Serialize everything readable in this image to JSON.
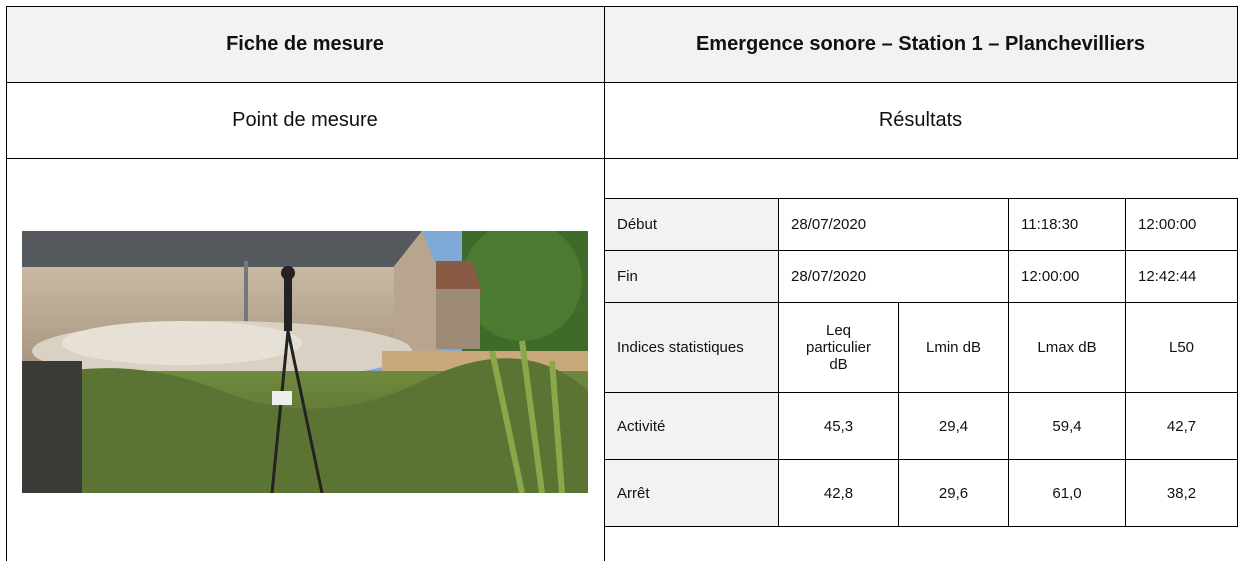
{
  "header": {
    "title": "Fiche de mesure",
    "subtitle": "Emergence sonore – Station 1 – Planchevilliers"
  },
  "sections": {
    "left": "Point de mesure",
    "right": "Résultats"
  },
  "table": {
    "periods": [
      {
        "label": "Début",
        "date": "28/07/2020",
        "start": "11:18:30",
        "end": "12:00:00"
      },
      {
        "label": "Fin",
        "date": "28/07/2020",
        "start": "12:00:00",
        "end": "12:42:44"
      }
    ],
    "columns": [
      "Indices statistiques",
      "Leq particulier dB",
      "Lmin dB",
      "Lmax dB",
      "L50"
    ],
    "rows": [
      [
        "Activité",
        "45,3",
        "29,4",
        "59,4",
        "42,7"
      ],
      [
        "Arrêt",
        "42,8",
        "29,6",
        "61,0",
        "38,2"
      ]
    ]
  }
}
